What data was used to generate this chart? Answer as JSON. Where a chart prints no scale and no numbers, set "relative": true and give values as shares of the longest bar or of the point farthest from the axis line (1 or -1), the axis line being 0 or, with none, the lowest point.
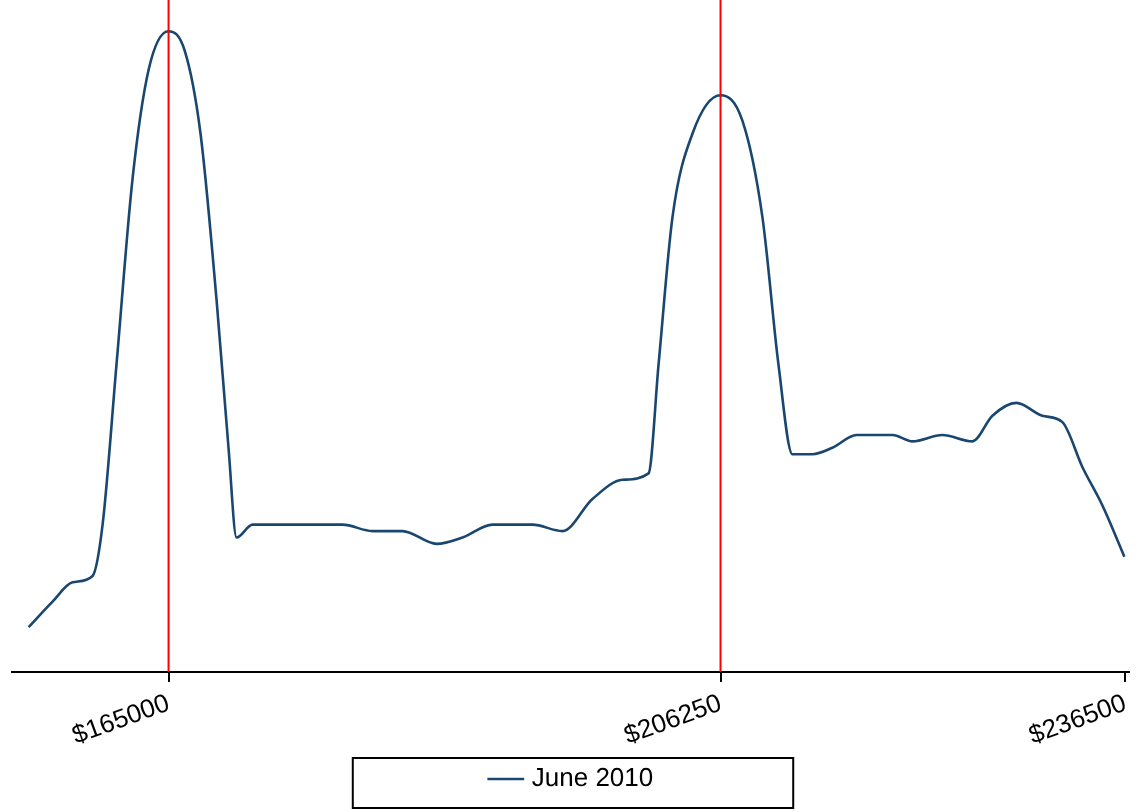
{
  "chart_data": {
    "type": "line",
    "relative": true,
    "x": [
      154540,
      156330,
      157830,
      159320,
      160070,
      161110,
      162310,
      163510,
      165000,
      166200,
      167390,
      168590,
      169480,
      170080,
      171280,
      174270,
      175760,
      178000,
      180250,
      182490,
      185030,
      186970,
      189210,
      192200,
      194440,
      196680,
      198920,
      200870,
      201620,
      202660,
      204150,
      206250,
      207890,
      209380,
      210580,
      211620,
      213120,
      214610,
      216410,
      219100,
      220590,
      222830,
      225070,
      226570,
      228360,
      230300,
      231800,
      233290,
      234790,
      236430
    ],
    "series": [
      {
        "name": "June 2010",
        "color": "#1a476f",
        "values": [
          0.07,
          0.11,
          0.14,
          0.15,
          0.23,
          0.48,
          0.77,
          0.94,
          1.0,
          0.97,
          0.84,
          0.58,
          0.35,
          0.21,
          0.23,
          0.23,
          0.23,
          0.23,
          0.22,
          0.22,
          0.2,
          0.21,
          0.23,
          0.23,
          0.22,
          0.27,
          0.3,
          0.31,
          0.48,
          0.71,
          0.84,
          0.9,
          0.86,
          0.71,
          0.48,
          0.34,
          0.34,
          0.35,
          0.37,
          0.37,
          0.36,
          0.37,
          0.36,
          0.4,
          0.42,
          0.4,
          0.39,
          0.32,
          0.26,
          0.18
        ]
      }
    ],
    "xlim": [
      153300,
      236800
    ],
    "xticks": [
      {
        "value": 165000,
        "label": "$165000"
      },
      {
        "value": 206250,
        "label": "$206250"
      },
      {
        "value": 236500,
        "label": "$236500"
      }
    ],
    "ref_lines": [
      {
        "axis": "x",
        "value": 165000,
        "color": "#ff0000"
      },
      {
        "axis": "x",
        "value": 206250,
        "color": "#ff0000"
      }
    ],
    "grid": false,
    "legend": "bottom",
    "marker": "none",
    "line_style": "solid"
  }
}
